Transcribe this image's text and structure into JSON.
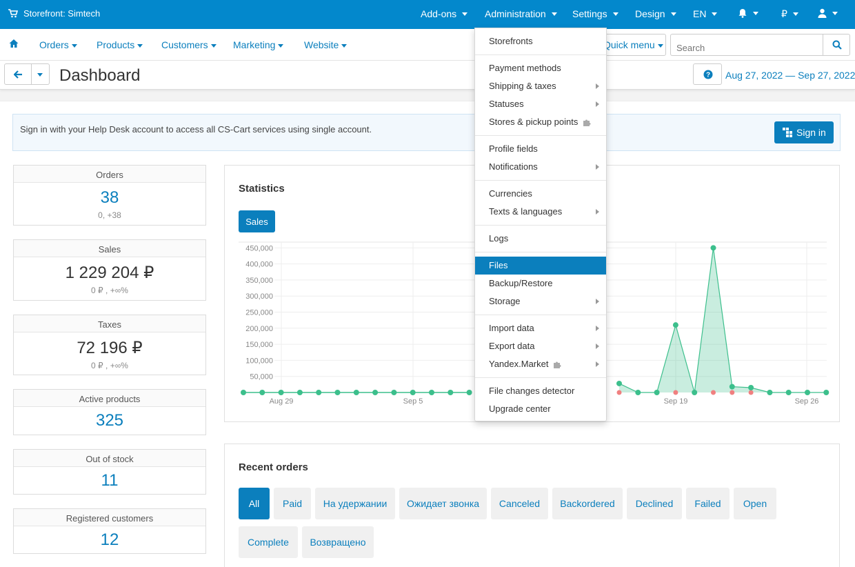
{
  "topbar": {
    "brand": "Storefront: Simtech",
    "menus": [
      "Add-ons",
      "Administration",
      "Settings",
      "Design",
      "EN"
    ],
    "currency": "₽"
  },
  "nav": {
    "items": [
      "Orders",
      "Products",
      "Customers",
      "Marketing",
      "Website"
    ],
    "quick_menu": "Quick menu",
    "search_placeholder": "Search"
  },
  "title": {
    "page_title": "Dashboard",
    "date_range": "Aug 27, 2022 — Sep 27, 2022"
  },
  "notice": {
    "text": "Sign in with your Help Desk account to access all CS-Cart services using single account.",
    "sign_in": "Sign in"
  },
  "stats": [
    {
      "label": "Orders",
      "value": "38",
      "sub": "0, +38"
    },
    {
      "label": "Sales",
      "value": "1 229 204 ₽",
      "sub": "0 ₽ , +∞%"
    },
    {
      "label": "Taxes",
      "value": "72 196 ₽",
      "sub": "0 ₽ , +∞%"
    },
    {
      "label": "Active products",
      "value": "325",
      "sub": ""
    },
    {
      "label": "Out of stock",
      "value": "11",
      "sub": ""
    },
    {
      "label": "Registered customers",
      "value": "12",
      "sub": ""
    }
  ],
  "statistics": {
    "title": "Statistics",
    "tab": "Sales"
  },
  "chart_data": {
    "type": "area",
    "title": "",
    "y_ticks": [
      "450,000",
      "400,000",
      "350,000",
      "300,000",
      "250,000",
      "200,000",
      "150,000",
      "100,000",
      "50,000"
    ],
    "x_ticks": [
      "Aug 29",
      "Sep 5",
      "Sep 19",
      "Sep 26"
    ],
    "ylim": [
      0,
      470000
    ],
    "grid": true,
    "colors": {
      "current": "#3cbf8c",
      "previous": "#f08080"
    },
    "series": [
      {
        "values_visible_left": [
          0,
          0,
          0,
          0,
          0,
          0,
          0,
          0,
          0,
          0,
          0,
          0,
          0
        ]
      },
      {
        "values_visible_right": [
          28000,
          0,
          0,
          210000,
          0,
          450000,
          18000,
          15000,
          0,
          0,
          0,
          0
        ]
      }
    ]
  },
  "recent_orders": {
    "title": "Recent orders",
    "filters": [
      "All",
      "Paid",
      "На удержании",
      "Ожидает звонка",
      "Canceled",
      "Backordered",
      "Declined",
      "Failed",
      "Open",
      "Complete",
      "Возвращено"
    ]
  },
  "admin_menu": {
    "items": [
      "Storefronts",
      "Payment methods",
      "Shipping & taxes",
      "Statuses",
      "Stores & pickup points",
      "Profile fields",
      "Notifications",
      "Currencies",
      "Texts & languages",
      "Logs",
      "Files",
      "Backup/Restore",
      "Storage",
      "Import data",
      "Export data",
      "Yandex.Market",
      "File changes detector",
      "Upgrade center"
    ],
    "active": "Files"
  }
}
